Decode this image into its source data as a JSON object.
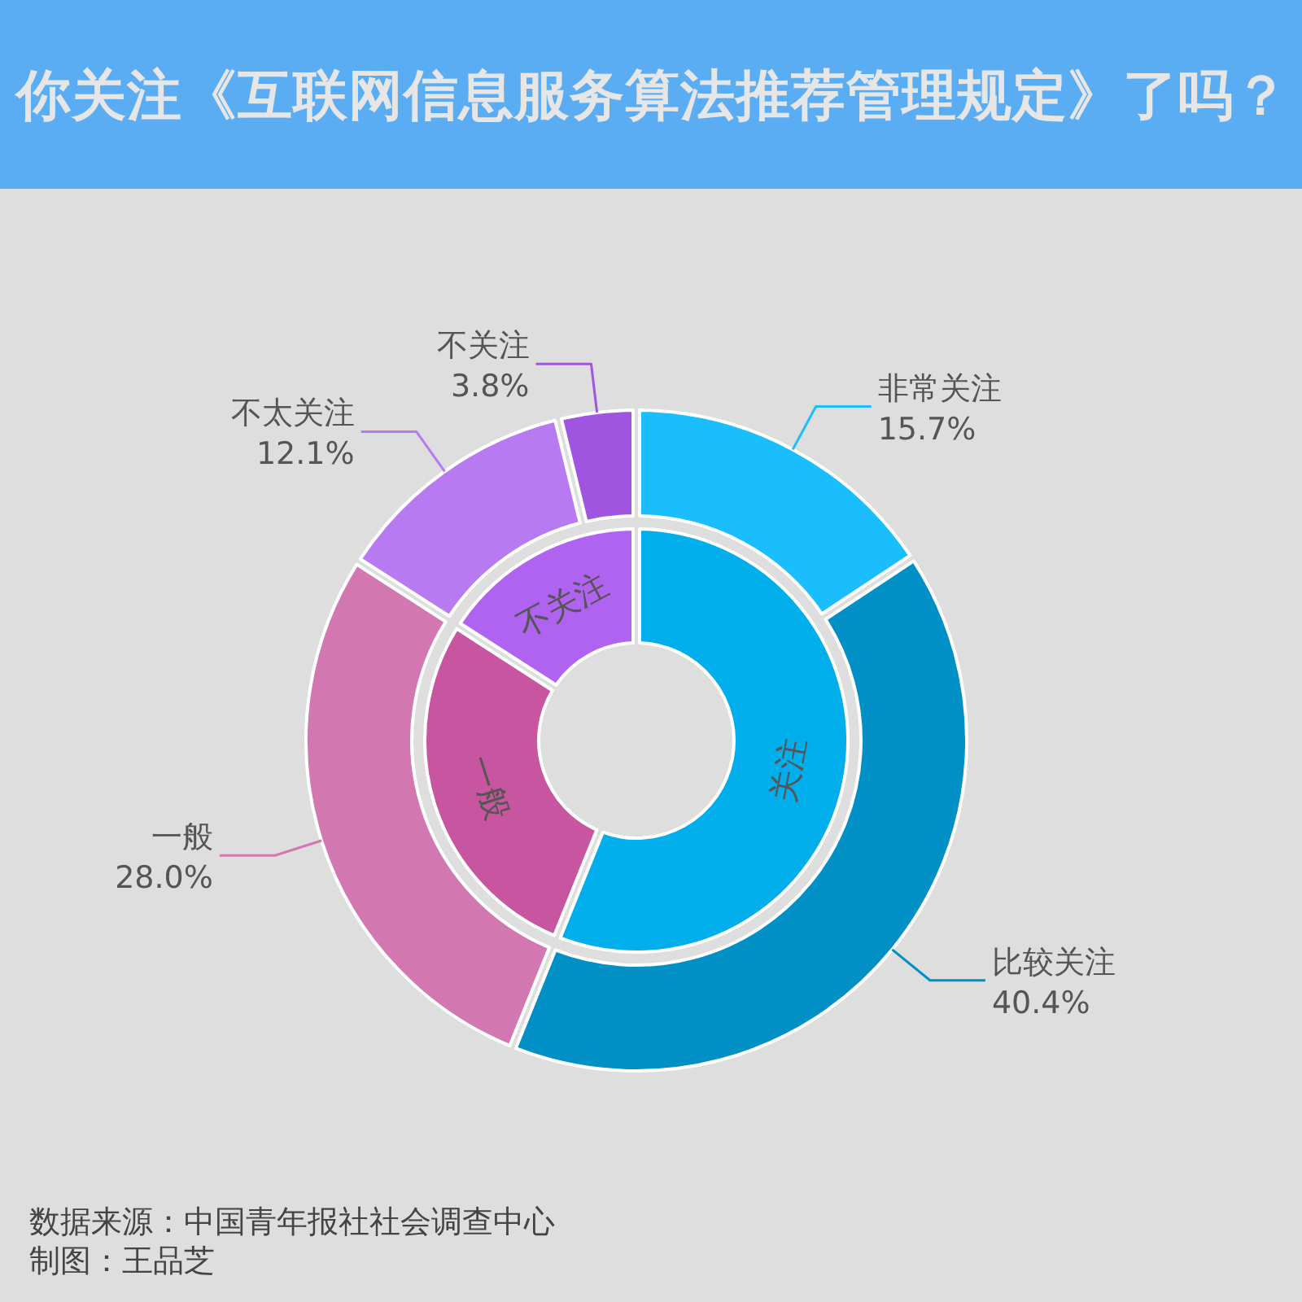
{
  "chart_data": [
    {
      "type": "donut",
      "title": "你关注《互联网信息服务算法推荐管理规定》了吗？",
      "categories": [
        "非常关注",
        "比较关注",
        "一般",
        "不太关注",
        "不关注"
      ],
      "values": [
        15.7,
        40.4,
        28.0,
        12.1,
        3.8
      ],
      "value_labels": [
        "15.7%",
        "40.4%",
        "28.0%",
        "12.1%",
        "3.8%"
      ],
      "colors": [
        "#1abefd",
        "#0090c6",
        "#d277b0",
        "#b87af0",
        "#a055e0"
      ],
      "annotations": [
        "数据来源：中国青年报社社会调查中心",
        "制图：王品芝"
      ]
    },
    {
      "type": "donut",
      "categories": [
        "关注",
        "一般",
        "不关注"
      ],
      "values": [
        56.1,
        28.0,
        15.9
      ],
      "colors": [
        "#00aeec",
        "#c8559f",
        "#b062f0"
      ]
    }
  ]
}
